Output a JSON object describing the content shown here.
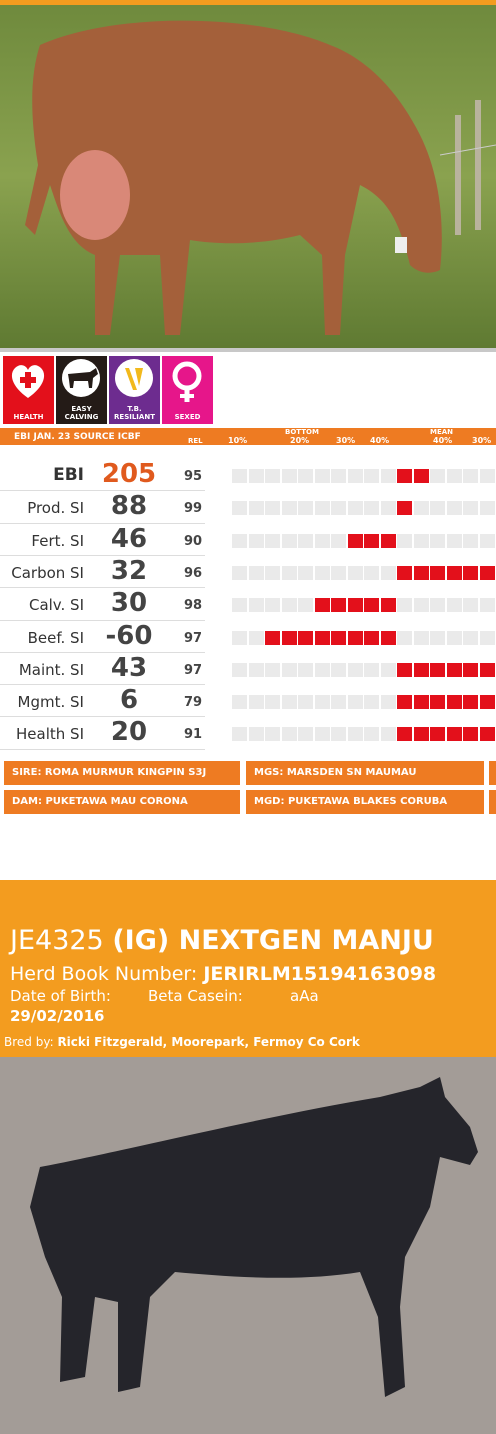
{
  "badges": [
    "HEALTH",
    "EASY CALVING",
    "T.B. RESILIANT",
    "SEXED"
  ],
  "table": {
    "header": {
      "source": "EBI JAN. 23 SOURCE ICBF",
      "rel": "REL",
      "bottom": "BOTTOM",
      "mean": "MEAN",
      "scale": [
        "10%",
        "20%",
        "30%",
        "40%",
        "40%",
        "30%"
      ]
    },
    "rows": [
      {
        "label": "EBI",
        "value": "205",
        "rel": "95"
      },
      {
        "label": "Prod. SI",
        "value": "88",
        "rel": "99"
      },
      {
        "label": "Fert. SI",
        "value": "46",
        "rel": "90"
      },
      {
        "label": "Carbon SI",
        "value": "32",
        "rel": "96"
      },
      {
        "label": "Calv. SI",
        "value": "30",
        "rel": "98"
      },
      {
        "label": "Beef. SI",
        "value": "-60",
        "rel": "97"
      },
      {
        "label": "Maint. SI",
        "value": "43",
        "rel": "97"
      },
      {
        "label": "Mgmt. SI",
        "value": "6",
        "rel": "79"
      },
      {
        "label": "Health SI",
        "value": "20",
        "rel": "91"
      }
    ]
  },
  "pedigree": {
    "sire": "SIRE: ROMA MURMUR KINGPIN S3J",
    "mgs": "MGS: MARSDEN SN MAUMAU",
    "dam": "DAM: PUKETAWA MAU CORONA",
    "mgd": "MGD: PUKETAWA BLAKES CORUBA"
  },
  "animal": {
    "id": "JE4325",
    "name": "(IG) NEXTGEN MANJU",
    "herd_book_label": "Herd Book Number:",
    "herd_book": "JERIRLM15194163098",
    "dob_label": "Date of Birth:",
    "dob": "29/02/2016",
    "beta_casein_label": "Beta Casein:",
    "beta_casein": "aAa",
    "bred_by_label": "Bred by:",
    "bred_by": "Ricki Fitzgerald, Moorepark, Fermoy Co Cork"
  }
}
